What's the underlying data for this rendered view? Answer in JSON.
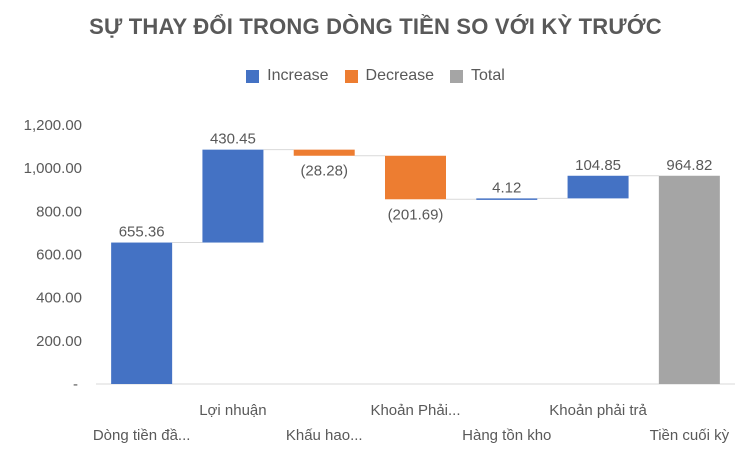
{
  "chart_data": {
    "type": "bar",
    "subtype": "waterfall",
    "title": "SỰ THAY ĐỔI TRONG DÒNG TIỀN SO VỚI KỲ TRƯỚC",
    "legend": {
      "position": "top",
      "entries": [
        {
          "name": "Increase",
          "color": "#4472C4"
        },
        {
          "name": "Decrease",
          "color": "#ED7D31"
        },
        {
          "name": "Total",
          "color": "#A5A5A5"
        }
      ]
    },
    "categories": [
      "Dòng tiền đầ...",
      "Lợi nhuận",
      "Khấu hao...",
      "Khoản Phải...",
      "Hàng tồn kho",
      "Khoản phải trả",
      "Tiền cuối kỳ"
    ],
    "values": [
      655.36,
      430.45,
      -28.28,
      -201.69,
      4.12,
      104.85,
      964.82
    ],
    "data_labels": [
      "655.36",
      "430.45",
      "(28.28)",
      "(201.69)",
      "4.12",
      "104.85",
      "964.82"
    ],
    "kinds": [
      "increase",
      "increase",
      "decrease",
      "decrease",
      "increase",
      "increase",
      "total"
    ],
    "ylim": [
      0,
      1200
    ],
    "yticks": [
      0,
      200,
      400,
      600,
      800,
      1000,
      1200
    ],
    "ytick_labels": [
      "-",
      "200.00",
      "400.00",
      "600.00",
      "800.00",
      "1,000.00",
      "1,200.00"
    ],
    "grid": false,
    "xlabel": "",
    "ylabel": ""
  }
}
